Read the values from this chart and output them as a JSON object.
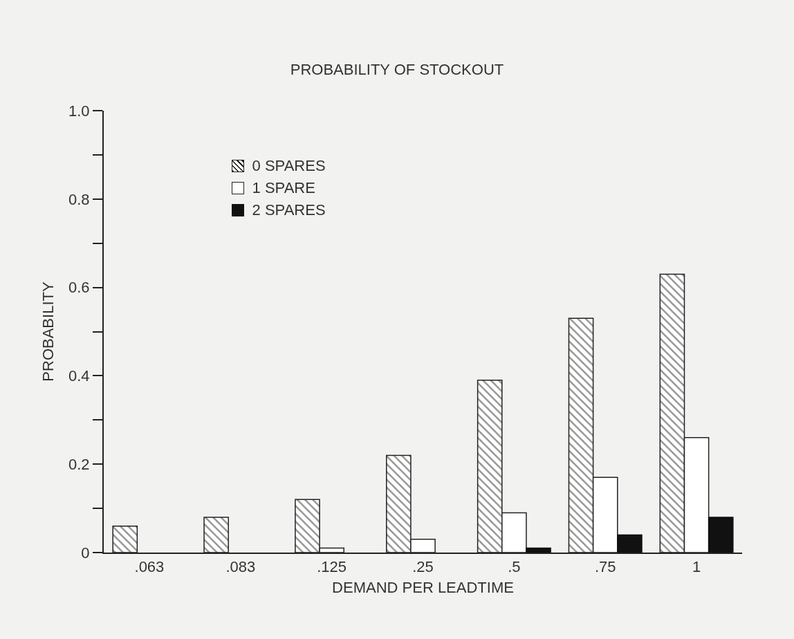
{
  "chart_data": {
    "type": "bar",
    "title": "PROBABILITY OF STOCKOUT",
    "xlabel": "DEMAND PER LEADTIME",
    "ylabel": "PROBABILITY",
    "categories": [
      ".063",
      ".083",
      ".125",
      ".25",
      ".5",
      ".75",
      "1"
    ],
    "series": [
      {
        "name": "0 SPARES",
        "color": "#222222",
        "values": [
          0.06,
          0.08,
          0.12,
          0.22,
          0.39,
          0.53,
          0.63
        ]
      },
      {
        "name": "1 SPARE",
        "color": "#ffffff",
        "values": [
          0,
          0,
          0.01,
          0.03,
          0.09,
          0.17,
          0.26
        ]
      },
      {
        "name": "2 SPARES",
        "color": "#111111",
        "values": [
          0,
          0,
          0,
          0,
          0.01,
          0.04,
          0.08
        ]
      }
    ],
    "ylim": [
      0,
      1.0
    ],
    "yticks": [
      0,
      {
        "value": 0.1,
        "label": null
      },
      0.2,
      {
        "value": 0.3,
        "label": null
      },
      0.4,
      {
        "value": 0.5,
        "label": null
      },
      0.6,
      {
        "value": 0.7,
        "label": null
      },
      0.8,
      {
        "value": 0.9,
        "label": null
      },
      {
        "value": 1.0,
        "label": "1.0"
      }
    ],
    "grid": false,
    "legend": "top left"
  }
}
